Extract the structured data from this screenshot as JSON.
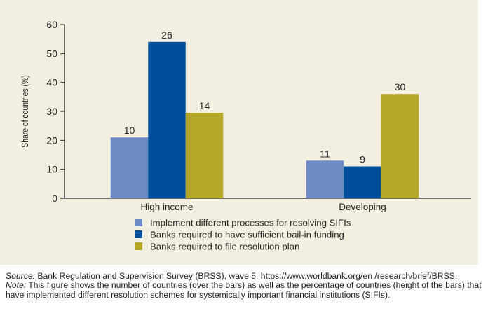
{
  "chart_data": {
    "type": "bar",
    "categories": [
      "High income",
      "Developing"
    ],
    "ylabel": "Share of countries (%)",
    "ylim": [
      0,
      60
    ],
    "yticks": [
      "0",
      "10",
      "20",
      "30",
      "40",
      "50",
      "60"
    ],
    "grid": false,
    "legend_position": "bottom",
    "series": [
      {
        "name": "Implement different processes for resolving SIFIs",
        "values": [
          21,
          13
        ],
        "labels": [
          "10",
          "11"
        ],
        "color": "#6d8cc6"
      },
      {
        "name": "Banks required to have sufficient bail-in funding",
        "values": [
          54,
          11
        ],
        "labels": [
          "26",
          "9"
        ],
        "color": "#004f9a"
      },
      {
        "name": "Banks required to file resolution plan",
        "values": [
          29.5,
          36
        ],
        "labels": [
          "14",
          "30"
        ],
        "color": "#b5a728"
      }
    ]
  },
  "notes": {
    "source_label": "Source:",
    "source_text": " Bank Regulation and Supervision Survey (BRSS), wave 5, https://www.worldbank.org/en /research/brief/BRSS.",
    "note_label": "Note:",
    "note_text": " This figure shows the number of countries (over the bars) as well as the percentage of countries (height of the bars) that have implemented different resolution schemes for systemically important financial institutions (SIFIs)."
  }
}
